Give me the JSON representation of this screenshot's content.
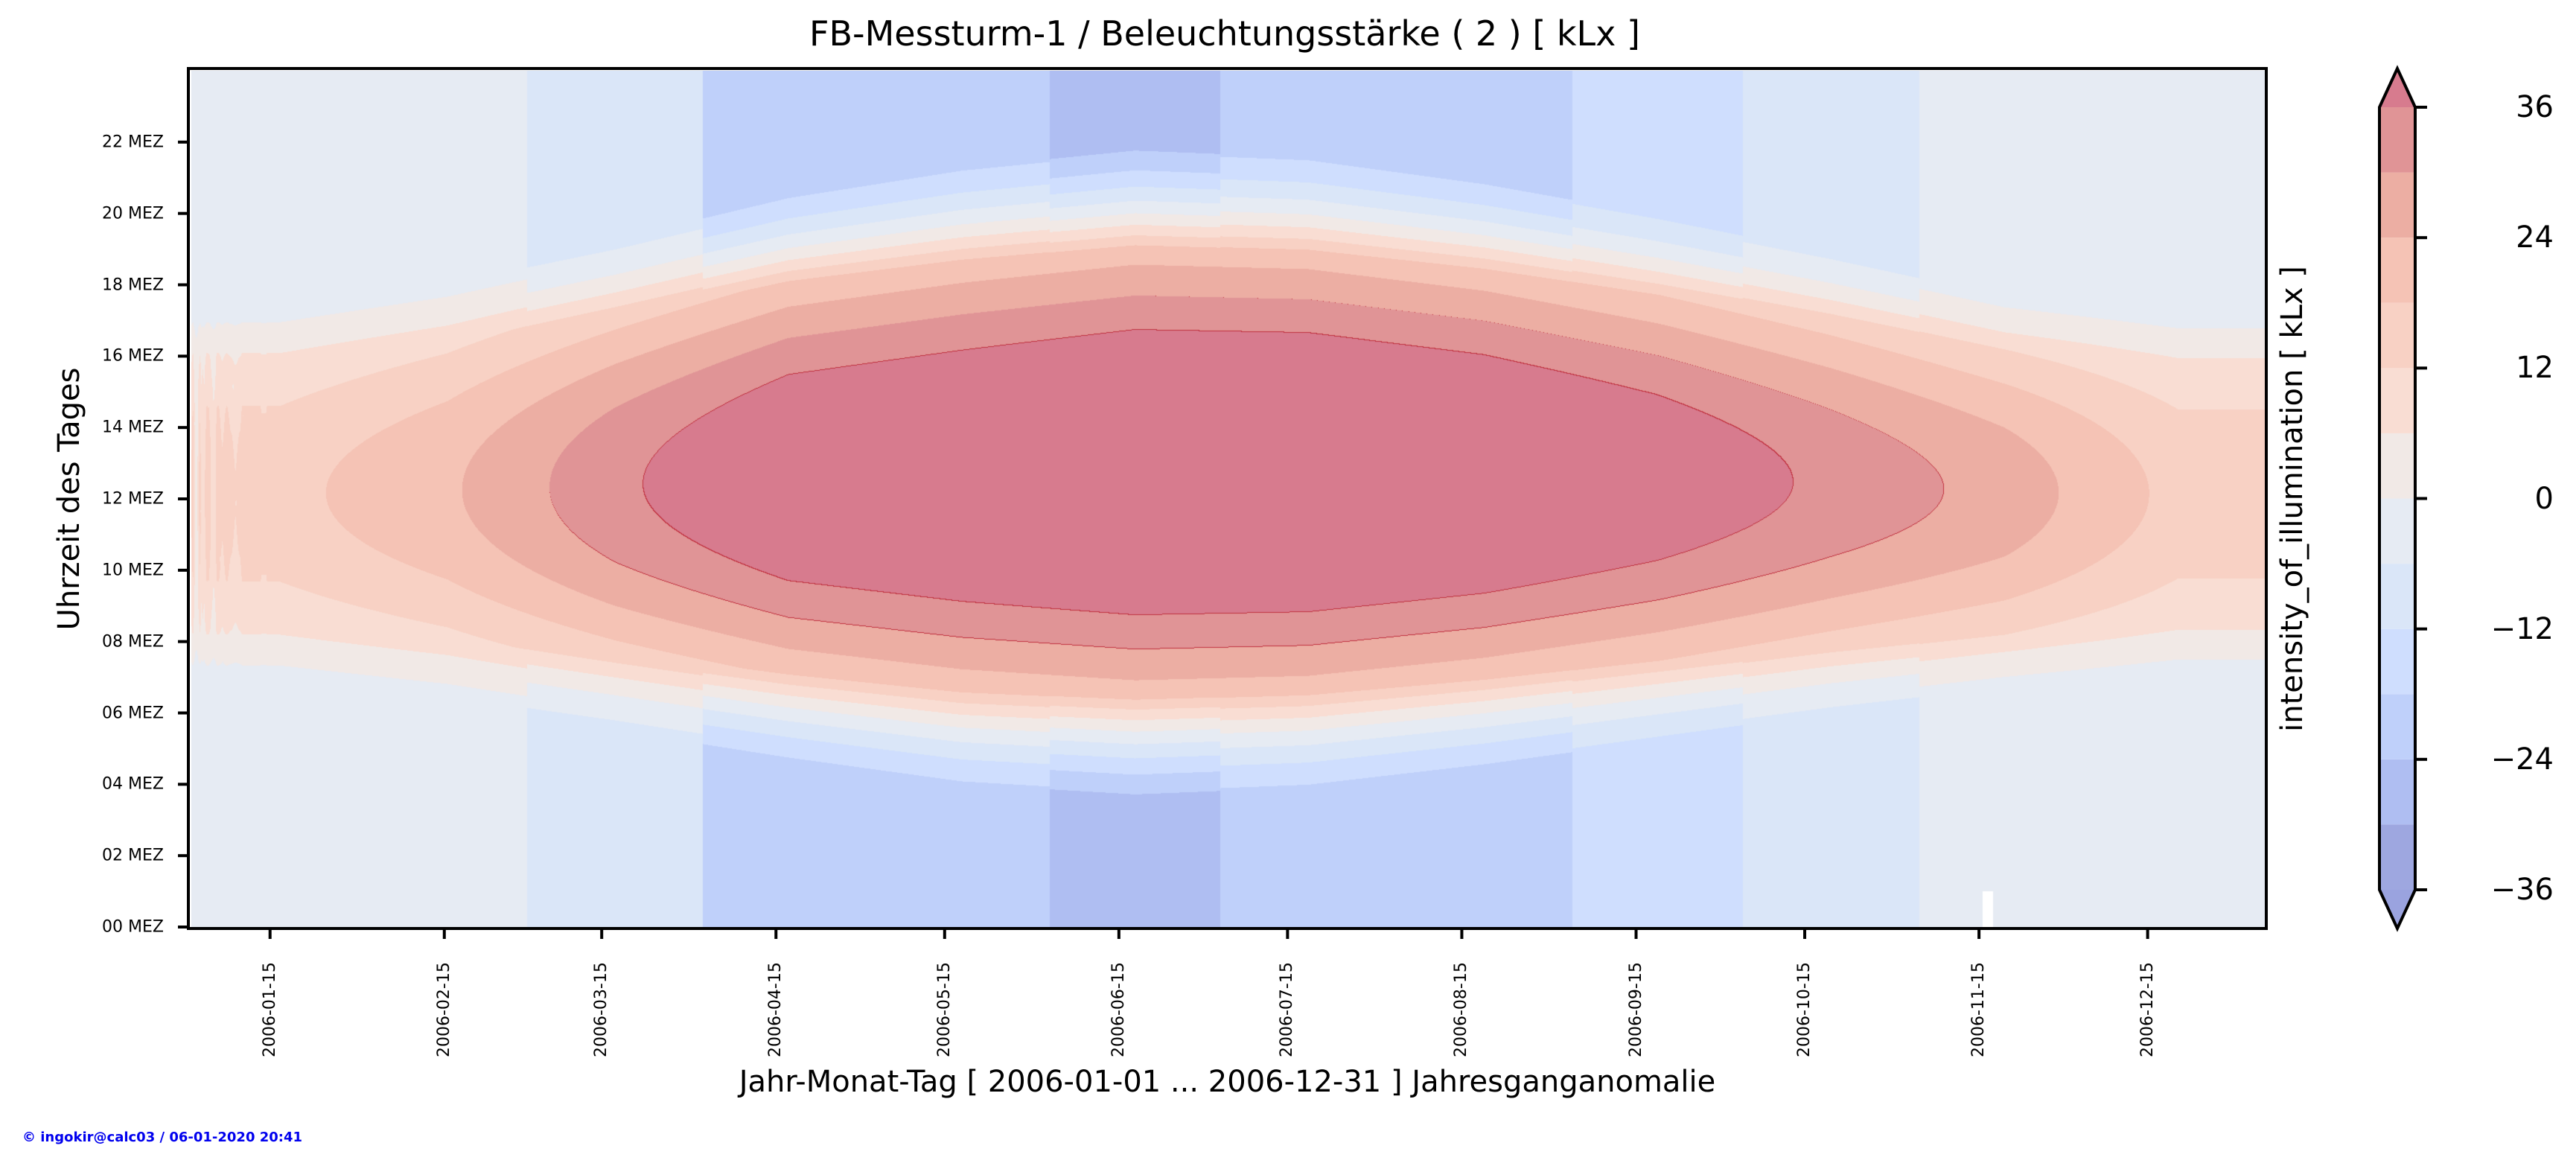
{
  "figure": {
    "title": "FB-Messturm-1 / Beleuchtungsstärke ( 2 ) [ kLx ]",
    "copyright": "© ingokir@calc03 / 06-01-2020 20:41",
    "copyright_color": "#0000ee"
  },
  "chart_data": {
    "type": "heatmap",
    "title": "FB-Messturm-1 / Beleuchtungsstärke ( 2 ) [ kLx ]",
    "xlabel": "Jahr-Monat-Tag [ 2006-01-01 ... 2006-12-31 ] Jahresganganomalie",
    "ylabel": "Uhrzeit des Tages",
    "colorbar_label": "intensity_of_illumination [ kLx ]",
    "x_range": [
      "2006-01-01",
      "2006-12-31"
    ],
    "xlim_days": [
      0,
      365
    ],
    "ylim_hours": [
      0,
      24
    ],
    "x_ticks": [
      {
        "label": "2006-01-15",
        "day": 14
      },
      {
        "label": "2006-02-15",
        "day": 45
      },
      {
        "label": "2006-03-15",
        "day": 73
      },
      {
        "label": "2006-04-15",
        "day": 104
      },
      {
        "label": "2006-05-15",
        "day": 134
      },
      {
        "label": "2006-06-15",
        "day": 165
      },
      {
        "label": "2006-07-15",
        "day": 195
      },
      {
        "label": "2006-08-15",
        "day": 226
      },
      {
        "label": "2006-09-15",
        "day": 257
      },
      {
        "label": "2006-10-15",
        "day": 287
      },
      {
        "label": "2006-11-15",
        "day": 318
      },
      {
        "label": "2006-12-15",
        "day": 348
      }
    ],
    "y_ticks": [
      {
        "label": "00 MEZ",
        "hour": 0
      },
      {
        "label": "02 MEZ",
        "hour": 2
      },
      {
        "label": "04 MEZ",
        "hour": 4
      },
      {
        "label": "06 MEZ",
        "hour": 6
      },
      {
        "label": "08 MEZ",
        "hour": 8
      },
      {
        "label": "10 MEZ",
        "hour": 10
      },
      {
        "label": "12 MEZ",
        "hour": 12
      },
      {
        "label": "14 MEZ",
        "hour": 14
      },
      {
        "label": "16 MEZ",
        "hour": 16
      },
      {
        "label": "18 MEZ",
        "hour": 18
      },
      {
        "label": "20 MEZ",
        "hour": 20
      },
      {
        "label": "22 MEZ",
        "hour": 22
      }
    ],
    "colorbar": {
      "levels": [
        -36,
        -30,
        -24,
        -18,
        -12,
        -6,
        0,
        6,
        12,
        18,
        24,
        30,
        36
      ],
      "ticks": [
        {
          "label": "36",
          "value": 36
        },
        {
          "label": "24",
          "value": 24
        },
        {
          "label": "12",
          "value": 12
        },
        {
          "label": "0",
          "value": 0
        },
        {
          "label": "−12",
          "value": -12
        },
        {
          "label": "−24",
          "value": -24
        },
        {
          "label": "−36",
          "value": -36
        }
      ],
      "colors": [
        "#9ea7e0",
        "#afbef2",
        "#bfd0fa",
        "#cfdefe",
        "#dae6f8",
        "#e6ebf3",
        "#f1e9e6",
        "#f9ddd3",
        "#f8d1c4",
        "#f5c3b5",
        "#ecaea3",
        "#e09496"
      ],
      "under_color": "#9aa3df",
      "over_color": "#d77b8e",
      "extend": "both",
      "contour_line_color": "#c0303e"
    },
    "months": [
      "2006-01",
      "2006-02",
      "2006-03",
      "2006-04",
      "2006-05",
      "2006-06",
      "2006-07",
      "2006-08",
      "2006-09",
      "2006-10",
      "2006-11",
      "2006-12"
    ],
    "month_start_day": [
      0,
      31,
      59,
      90,
      120,
      151,
      181,
      212,
      243,
      273,
      304,
      334
    ],
    "night_anomaly_by_month": [
      -3,
      -3,
      -9,
      -21,
      -21,
      -27,
      -21,
      -21,
      -15,
      -9,
      -3,
      -3
    ],
    "day_peak_anomaly_by_month": [
      14,
      20,
      30,
      38,
      40,
      42,
      42,
      40,
      36,
      30,
      24,
      14
    ],
    "daylight_hours_by_month": [
      [
        8.0,
        16.3
      ],
      [
        7.5,
        17.0
      ],
      [
        6.8,
        18.0
      ],
      [
        6.0,
        19.2
      ],
      [
        5.3,
        20.0
      ],
      [
        5.0,
        20.5
      ],
      [
        5.2,
        20.3
      ],
      [
        5.8,
        19.6
      ],
      [
        6.5,
        18.7
      ],
      [
        7.2,
        17.7
      ],
      [
        7.8,
        16.6
      ],
      [
        8.2,
        16.1
      ]
    ],
    "missing_data": [
      {
        "day": 316,
        "hour_from": 0,
        "hour_to": 1
      }
    ]
  }
}
